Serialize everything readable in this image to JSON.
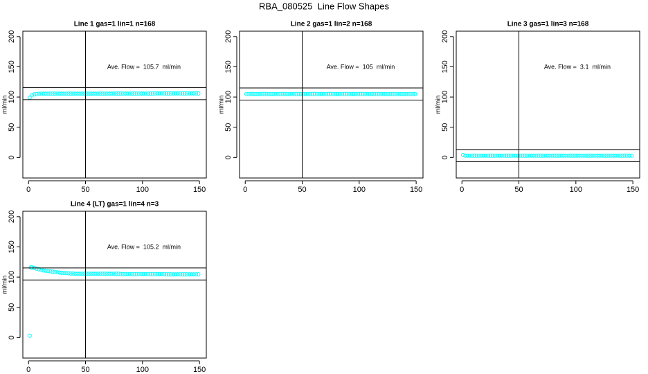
{
  "title": "RBA_080525  Line Flow Shapes",
  "chart_data": [
    {
      "type": "scatter",
      "title": "Line 1 gas=1 lin=1 n=168",
      "y_label": "ml/min",
      "annotation": "Ave. Flow =  105.7  ml/min",
      "color": "#00ffff",
      "xlim": [
        -5,
        156
      ],
      "ylim": [
        -34,
        209
      ],
      "xticks": [
        0,
        50,
        100,
        150
      ],
      "yticks": [
        0,
        50,
        100,
        150,
        200
      ],
      "hlines": [
        95.7,
        115.7
      ],
      "vlines": [
        50
      ],
      "x": [
        1,
        3,
        5,
        7,
        9,
        11,
        13,
        15,
        17,
        19,
        21,
        23,
        25,
        27,
        29,
        31,
        33,
        35,
        37,
        39,
        41,
        43,
        45,
        47,
        49,
        51,
        53,
        55,
        57,
        59,
        61,
        63,
        65,
        67,
        69,
        71,
        73,
        75,
        77,
        79,
        81,
        83,
        85,
        87,
        89,
        91,
        93,
        95,
        97,
        99,
        101,
        103,
        105,
        107,
        109,
        111,
        113,
        115,
        117,
        119,
        121,
        123,
        125,
        127,
        129,
        131,
        133,
        135,
        137,
        139,
        141,
        143,
        145,
        147,
        149
      ],
      "y": [
        99,
        103,
        104.5,
        105,
        105.2,
        105.5,
        105.5,
        105.5,
        105.5,
        105.5,
        105.5,
        105.5,
        105.5,
        105.5,
        105.5,
        105.5,
        105.5,
        105.5,
        105.5,
        105.5,
        105.5,
        105.5,
        105.5,
        105.5,
        105.5,
        105.5,
        105.5,
        105.5,
        105.5,
        105.5,
        105.5,
        105.5,
        105.5,
        105.5,
        105.5,
        105.7,
        105.7,
        105.7,
        105.7,
        105.7,
        105.7,
        105.7,
        105.7,
        105.7,
        105.7,
        105.7,
        105.7,
        105.7,
        105.7,
        105.7,
        105.7,
        105.7,
        105.7,
        105.7,
        105.7,
        106,
        106,
        106,
        106,
        106,
        106,
        106,
        106,
        106,
        106,
        106,
        106,
        106,
        106,
        106,
        106,
        106,
        106,
        106,
        106
      ]
    },
    {
      "type": "scatter",
      "title": "Line 2 gas=1 lin=2 n=168",
      "y_label": "ml/min",
      "annotation": "Ave. Flow =  105  ml/min",
      "color": "#00ffff",
      "xlim": [
        -5,
        156
      ],
      "ylim": [
        -34,
        209
      ],
      "xticks": [
        0,
        50,
        100,
        150
      ],
      "yticks": [
        0,
        50,
        100,
        150,
        200
      ],
      "hlines": [
        95,
        115
      ],
      "vlines": [
        50
      ],
      "x": [
        1,
        3,
        5,
        7,
        9,
        11,
        13,
        15,
        17,
        19,
        21,
        23,
        25,
        27,
        29,
        31,
        33,
        35,
        37,
        39,
        41,
        43,
        45,
        47,
        49,
        51,
        53,
        55,
        57,
        59,
        61,
        63,
        65,
        67,
        69,
        71,
        73,
        75,
        77,
        79,
        81,
        83,
        85,
        87,
        89,
        91,
        93,
        95,
        97,
        99,
        101,
        103,
        105,
        107,
        109,
        111,
        113,
        115,
        117,
        119,
        121,
        123,
        125,
        127,
        129,
        131,
        133,
        135,
        137,
        139,
        141,
        143,
        145,
        147,
        149
      ],
      "y": [
        105,
        105,
        105,
        105,
        105,
        105,
        105,
        105,
        105,
        105,
        105,
        105,
        105,
        105,
        105,
        105,
        105,
        105,
        105,
        105,
        105,
        105,
        105,
        105,
        105,
        105,
        105,
        105,
        105,
        105,
        105,
        105,
        105,
        105,
        105,
        105,
        105,
        105,
        105,
        105,
        105,
        105,
        105,
        105,
        105,
        105,
        105,
        105,
        105,
        105,
        105,
        105,
        105,
        105,
        105,
        105,
        105,
        105,
        105,
        105,
        105,
        105,
        105,
        105,
        105,
        105,
        105,
        105,
        105,
        105,
        105,
        105,
        105,
        105,
        105
      ]
    },
    {
      "type": "scatter",
      "title": "Line 3 gas=1 lin=3 n=168",
      "y_label": "ml/min",
      "annotation": "Ave. Flow =  3.1  ml/min",
      "color": "#00ffff",
      "xlim": [
        -5,
        156
      ],
      "ylim": [
        -34,
        209
      ],
      "xticks": [
        0,
        50,
        100,
        150
      ],
      "yticks": [
        0,
        50,
        100,
        150,
        200
      ],
      "hlines": [
        -6.9,
        13.1
      ],
      "vlines": [
        50
      ],
      "x": [
        1,
        3,
        5,
        7,
        9,
        11,
        13,
        15,
        17,
        19,
        21,
        23,
        25,
        27,
        29,
        31,
        33,
        35,
        37,
        39,
        41,
        43,
        45,
        47,
        49,
        51,
        53,
        55,
        57,
        59,
        61,
        63,
        65,
        67,
        69,
        71,
        73,
        75,
        77,
        79,
        81,
        83,
        85,
        87,
        89,
        91,
        93,
        95,
        97,
        99,
        101,
        103,
        105,
        107,
        109,
        111,
        113,
        115,
        117,
        119,
        121,
        123,
        125,
        127,
        129,
        131,
        133,
        135,
        137,
        139,
        141,
        143,
        145,
        147,
        149
      ],
      "y": [
        4,
        3,
        3,
        3,
        3,
        3,
        3,
        3,
        3,
        3,
        3,
        3,
        3,
        3,
        3,
        3,
        3,
        3,
        3,
        3,
        3,
        3,
        3,
        3,
        3,
        3,
        3,
        3,
        3,
        3,
        3,
        3,
        3,
        3,
        3,
        3,
        3,
        3,
        3,
        3,
        3,
        3,
        3,
        3,
        3,
        3,
        3,
        3,
        3,
        3,
        3,
        3,
        3,
        3,
        3,
        3,
        3,
        3,
        3,
        3,
        3,
        3,
        3,
        3,
        3,
        3,
        3,
        3,
        3,
        3,
        3,
        3,
        3,
        3,
        3
      ]
    },
    {
      "type": "scatter",
      "title": "Line 4 (LT) gas=1 lin=4 n=3",
      "y_label": "ml/min",
      "annotation": "Ave. Flow =  105.2  ml/min",
      "color": "#00ffff",
      "xlim": [
        -5,
        156
      ],
      "ylim": [
        -34,
        209
      ],
      "xticks": [
        0,
        50,
        100,
        150
      ],
      "yticks": [
        0,
        50,
        100,
        150,
        200
      ],
      "hlines": [
        95.2,
        115.2
      ],
      "vlines": [
        50
      ],
      "x": [
        1,
        2,
        3,
        5,
        7,
        9,
        11,
        13,
        15,
        17,
        19,
        21,
        23,
        25,
        27,
        29,
        31,
        33,
        35,
        37,
        39,
        41,
        43,
        45,
        47,
        49,
        51,
        53,
        55,
        57,
        59,
        61,
        63,
        65,
        67,
        69,
        71,
        73,
        75,
        77,
        79,
        81,
        83,
        85,
        87,
        89,
        91,
        93,
        95,
        97,
        99,
        101,
        103,
        105,
        107,
        109,
        111,
        113,
        115,
        117,
        119,
        121,
        123,
        125,
        127,
        129,
        131,
        133,
        135,
        137,
        139,
        141,
        143,
        145,
        147,
        149
      ],
      "y": [
        3,
        116,
        116,
        115,
        114,
        113,
        112,
        111,
        110.5,
        110,
        109.5,
        109,
        108.5,
        108,
        107.5,
        107,
        107,
        106.5,
        106.5,
        106,
        106,
        105.5,
        105.5,
        105.5,
        105.5,
        105.5,
        105.5,
        105.5,
        105.5,
        105.5,
        105.5,
        105.5,
        105.5,
        105.5,
        105.5,
        105.5,
        105.5,
        105.5,
        105.5,
        105.5,
        105.5,
        105,
        105,
        105,
        105,
        105,
        105,
        105,
        105,
        105,
        105,
        105,
        105,
        105,
        105,
        105,
        105,
        105,
        105,
        105,
        105,
        104.5,
        104.5,
        104.5,
        104.5,
        104.5,
        104.5,
        104.5,
        104.5,
        104.5,
        104.5,
        104.5,
        104.5,
        104.5,
        104.5,
        104.5
      ]
    }
  ]
}
